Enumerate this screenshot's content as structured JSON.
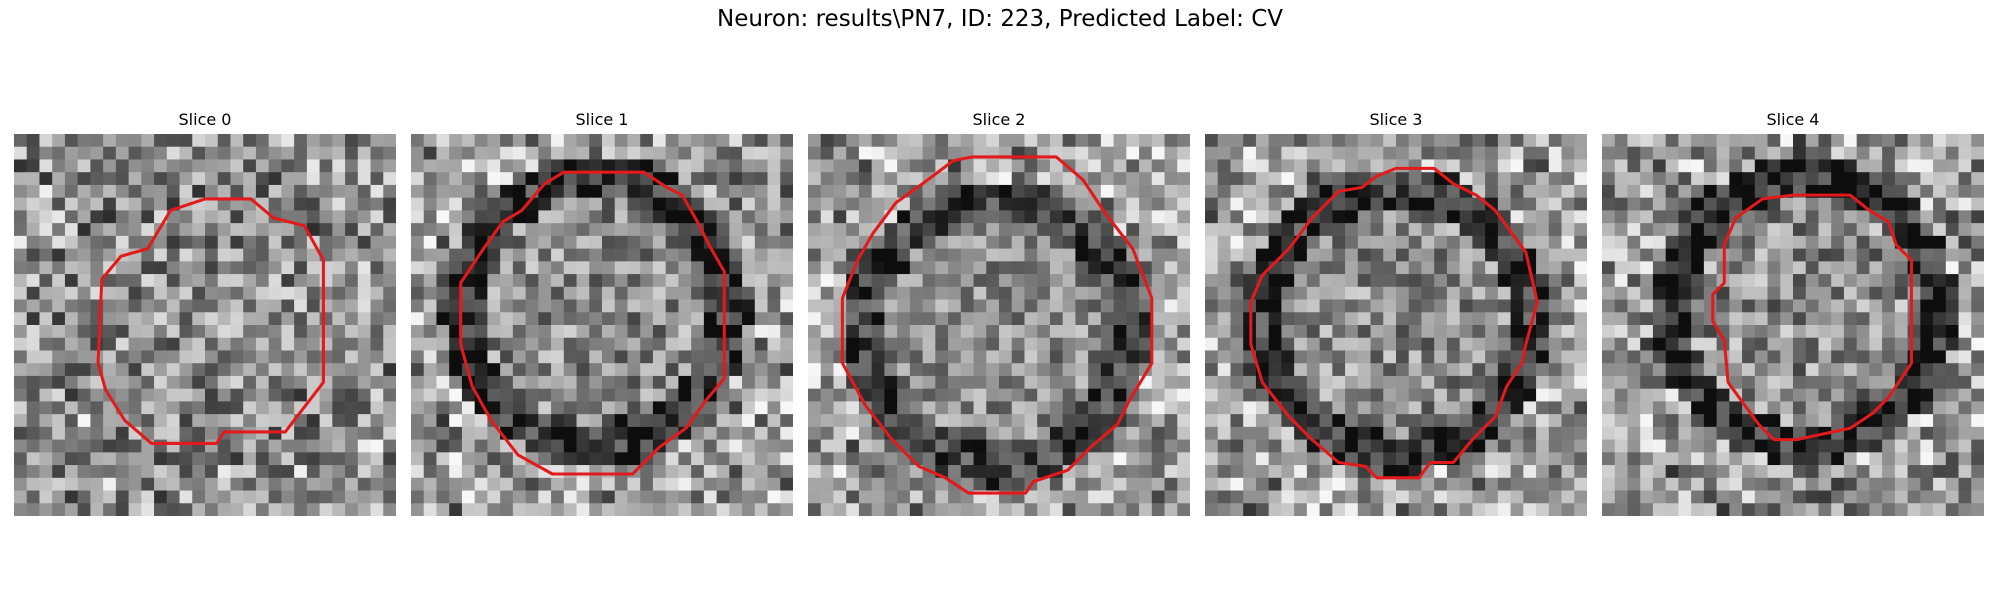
{
  "title": "Neuron: results\\PN7, ID: 223, Predicted Label: CV",
  "outline_color": "#e31a1c",
  "panels": [
    {
      "title": "Slice 0",
      "seed": 11,
      "contrast": 0.65,
      "ring": 0.05,
      "outer_bright": 0.15,
      "outline": [
        [
          3.5,
          3
        ],
        [
          4.1,
          2
        ],
        [
          5.0,
          1.7
        ],
        [
          6.2,
          1.7
        ],
        [
          6.8,
          2.2
        ],
        [
          7.6,
          2.4
        ],
        [
          8.1,
          3.3
        ],
        [
          8.1,
          6.5
        ],
        [
          7.1,
          7.8
        ],
        [
          5.5,
          7.8
        ],
        [
          5.3,
          8.1
        ],
        [
          3.6,
          8.1
        ],
        [
          2.9,
          7.5
        ],
        [
          2.4,
          6.7
        ],
        [
          2.2,
          6.0
        ],
        [
          2.3,
          3.8
        ],
        [
          2.8,
          3.2
        ]
      ]
    },
    {
      "title": "Slice 1",
      "seed": 23,
      "contrast": 0.55,
      "ring": 0.35,
      "outer_bright": 0.35,
      "outline": [
        [
          2.9,
          2.0
        ],
        [
          3.5,
          1.3
        ],
        [
          4.0,
          1.0
        ],
        [
          6.1,
          1.0
        ],
        [
          6.7,
          1.4
        ],
        [
          7.1,
          1.6
        ],
        [
          7.5,
          2.3
        ],
        [
          7.8,
          2.9
        ],
        [
          8.2,
          3.6
        ],
        [
          8.2,
          6.4
        ],
        [
          7.7,
          7.0
        ],
        [
          7.2,
          7.7
        ],
        [
          6.5,
          8.2
        ],
        [
          5.8,
          8.9
        ],
        [
          3.7,
          8.9
        ],
        [
          2.8,
          8.4
        ],
        [
          2.1,
          7.5
        ],
        [
          1.6,
          6.6
        ],
        [
          1.3,
          5.5
        ],
        [
          1.3,
          3.9
        ],
        [
          1.9,
          3.0
        ],
        [
          2.4,
          2.3
        ]
      ]
    },
    {
      "title": "Slice 2",
      "seed": 37,
      "contrast": 0.5,
      "ring": 0.3,
      "outer_bright": 0.4,
      "outline": [
        [
          3.8,
          0.7
        ],
        [
          4.3,
          0.6
        ],
        [
          6.5,
          0.6
        ],
        [
          7.2,
          1.2
        ],
        [
          7.8,
          2.1
        ],
        [
          8.5,
          3.0
        ],
        [
          9.0,
          4.3
        ],
        [
          9.0,
          6.0
        ],
        [
          8.4,
          7.0
        ],
        [
          8.1,
          7.6
        ],
        [
          7.4,
          8.2
        ],
        [
          6.8,
          8.8
        ],
        [
          5.9,
          9.1
        ],
        [
          5.7,
          9.4
        ],
        [
          4.2,
          9.4
        ],
        [
          3.6,
          9.0
        ],
        [
          2.9,
          8.7
        ],
        [
          2.2,
          8.0
        ],
        [
          1.5,
          7.1
        ],
        [
          0.9,
          6.0
        ],
        [
          0.9,
          4.3
        ],
        [
          1.3,
          3.3
        ],
        [
          1.7,
          2.6
        ],
        [
          2.3,
          1.8
        ],
        [
          3.0,
          1.3
        ]
      ]
    },
    {
      "title": "Slice 3",
      "seed": 53,
      "contrast": 0.55,
      "ring": 0.35,
      "outer_bright": 0.35,
      "outline": [
        [
          3.5,
          1.5
        ],
        [
          4.1,
          1.4
        ],
        [
          4.5,
          1.1
        ],
        [
          5.0,
          0.9
        ],
        [
          6.0,
          0.9
        ],
        [
          6.5,
          1.3
        ],
        [
          7.1,
          1.6
        ],
        [
          7.6,
          2.0
        ],
        [
          8.4,
          3.1
        ],
        [
          8.7,
          4.4
        ],
        [
          8.4,
          5.5
        ],
        [
          8.3,
          6.0
        ],
        [
          7.9,
          6.6
        ],
        [
          7.6,
          7.4
        ],
        [
          7.0,
          8.0
        ],
        [
          6.5,
          8.6
        ],
        [
          5.9,
          8.6
        ],
        [
          5.6,
          9.0
        ],
        [
          4.5,
          9.0
        ],
        [
          4.2,
          8.7
        ],
        [
          3.5,
          8.6
        ],
        [
          2.8,
          8.0
        ],
        [
          2.2,
          7.4
        ],
        [
          1.5,
          6.5
        ],
        [
          1.2,
          5.5
        ],
        [
          1.2,
          4.4
        ],
        [
          1.5,
          3.7
        ],
        [
          2.2,
          3.0
        ],
        [
          2.8,
          2.2
        ],
        [
          3.2,
          1.8
        ]
      ]
    },
    {
      "title": "Slice 4",
      "seed": 71,
      "contrast": 0.6,
      "ring": 0.4,
      "outer_bright": 0.3,
      "outline": [
        [
          3.5,
          2.2
        ],
        [
          4.2,
          1.7
        ],
        [
          5.0,
          1.6
        ],
        [
          6.5,
          1.6
        ],
        [
          7.0,
          2.0
        ],
        [
          7.5,
          2.3
        ],
        [
          7.7,
          2.9
        ],
        [
          8.1,
          3.3
        ],
        [
          8.1,
          6.0
        ],
        [
          7.5,
          6.9
        ],
        [
          7.1,
          7.3
        ],
        [
          6.5,
          7.7
        ],
        [
          5.1,
          8.0
        ],
        [
          4.5,
          8.0
        ],
        [
          4.1,
          7.6
        ],
        [
          3.3,
          6.5
        ],
        [
          3.2,
          5.4
        ],
        [
          2.9,
          4.9
        ],
        [
          2.9,
          4.2
        ],
        [
          3.2,
          3.9
        ],
        [
          3.2,
          2.9
        ]
      ]
    }
  ]
}
